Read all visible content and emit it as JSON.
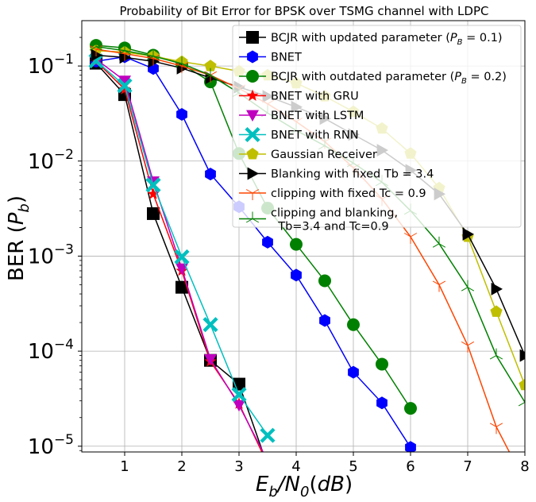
{
  "chart_data": {
    "type": "line",
    "title": "Probability of Bit Error for BPSK over TSMG channel with LDPC",
    "xlabel": "Eb/N0(dB)",
    "ylabel": "BER (Pb)",
    "xlim": [
      0.25,
      8.0
    ],
    "ylim": [
      8.7e-06,
      0.3
    ],
    "yscale": "log",
    "grid": true,
    "legend_position": "top-right",
    "x_ticks": [
      1,
      2,
      3,
      4,
      5,
      6,
      7,
      8
    ],
    "x_tick_labels": [
      "1",
      "2",
      "3",
      "4",
      "5",
      "6",
      "7",
      "8"
    ],
    "y_ticks": [
      1e-05,
      0.0001,
      0.001,
      0.01,
      0.1
    ],
    "y_tick_labels": [
      {
        "base": "10",
        "exp": "−5"
      },
      {
        "base": "10",
        "exp": "−4"
      },
      {
        "base": "10",
        "exp": "−3"
      },
      {
        "base": "10",
        "exp": "−2"
      },
      {
        "base": "10",
        "exp": "−1"
      }
    ],
    "series": [
      {
        "name": "BCJR with updated parameter (P_B = 0.1)",
        "legend_pre": "BCJR with updated parameter (",
        "legend_sub_var": "P",
        "legend_sub": "B",
        "legend_post": " = 0.1)",
        "color": "#000000",
        "marker": "square",
        "x": [
          0.5,
          1,
          1.5,
          2,
          2.5,
          3,
          3.5
        ],
        "y": [
          0.107,
          0.05,
          0.0028,
          0.00047,
          8e-05,
          4.5e-05,
          6.2e-06
        ]
      },
      {
        "name": "BNET",
        "color": "#0000ff",
        "marker": "hexagon",
        "x": [
          0.5,
          1,
          1.5,
          2,
          2.5,
          3,
          3.5,
          4,
          4.5,
          5,
          5.5,
          6
        ],
        "y": [
          0.112,
          0.125,
          0.094,
          0.031,
          0.0073,
          0.0033,
          0.0014,
          0.00063,
          0.00021,
          6e-05,
          2.85e-05,
          9.7e-06
        ]
      },
      {
        "name": "BCJR with outdated parameter (P_B = 0.2)",
        "legend_pre": "BCJR with outdated parameter (",
        "legend_sub_var": "P",
        "legend_sub": "B",
        "legend_post": " = 0.2)",
        "color": "#008000",
        "marker": "circle",
        "x": [
          0.5,
          1,
          1.5,
          2,
          2.5,
          3,
          3.5,
          4,
          4.5,
          5,
          5.5,
          6
        ],
        "y": [
          0.165,
          0.155,
          0.13,
          0.105,
          0.068,
          0.012,
          0.0032,
          0.00133,
          0.00055,
          0.00019,
          7.3e-05,
          2.5e-05
        ]
      },
      {
        "name": "BNET with GRU",
        "color": "#ff0000",
        "marker": "star",
        "x": [
          0.5,
          1,
          1.5,
          2,
          2.5,
          3,
          3.5
        ],
        "y": [
          0.112,
          0.057,
          0.0045,
          0.0007,
          7.8e-05,
          2.8e-05,
          6.5e-06
        ]
      },
      {
        "name": "BNET with LSTM",
        "color": "#bf00bf",
        "marker": "triangle-down",
        "x": [
          0.5,
          1,
          1.5,
          2,
          2.5,
          3,
          3.5
        ],
        "y": [
          0.118,
          0.07,
          0.0061,
          0.00074,
          8.2e-05,
          2.7e-05,
          7e-06
        ]
      },
      {
        "name": "BNET with RNN",
        "color": "#00bfbf",
        "marker": "x",
        "x": [
          0.5,
          1,
          1.5,
          2,
          2.5,
          3,
          3.5
        ],
        "y": [
          0.113,
          0.062,
          0.0056,
          0.00098,
          0.00019,
          3.5e-05,
          1.3e-05
        ]
      },
      {
        "name": "Gaussian Receiver",
        "color": "#bfbf00",
        "marker": "pentagon",
        "x": [
          0.5,
          1,
          1.5,
          2,
          2.5,
          3,
          3.5,
          4,
          4.5,
          5,
          5.5,
          6,
          6.5,
          7,
          7.5,
          8
        ],
        "y": [
          0.145,
          0.14,
          0.127,
          0.111,
          0.1,
          0.088,
          0.08,
          0.066,
          0.048,
          0.033,
          0.022,
          0.012,
          0.0052,
          0.0016,
          0.00026,
          4.4e-05
        ]
      },
      {
        "name": "Blanking with fixed Tb = 3.4",
        "color": "#000000",
        "marker": "triangle-right",
        "x": [
          0.5,
          1,
          1.5,
          2,
          2.5,
          3,
          3.5,
          4,
          4.5,
          5,
          5.5,
          6,
          6.5,
          7,
          7.5,
          8
        ],
        "y": [
          0.13,
          0.123,
          0.112,
          0.095,
          0.075,
          0.06,
          0.048,
          0.037,
          0.028,
          0.019,
          0.013,
          0.008,
          0.0045,
          0.0017,
          0.00045,
          9e-05
        ]
      },
      {
        "name": "clipping with fixed Tc = 0.9",
        "color": "#ff4500",
        "marker": "tri-down",
        "x": [
          0.5,
          1,
          1.5,
          2,
          2.5,
          3,
          3.5,
          4,
          4.5,
          5,
          5.5,
          6,
          6.5,
          7,
          7.5,
          8
        ],
        "y": [
          0.15,
          0.135,
          0.12,
          0.1,
          0.08,
          0.058,
          0.04,
          0.026,
          0.016,
          0.0085,
          0.004,
          0.0016,
          0.0005,
          0.000115,
          1.6e-05,
          4.2e-06
        ]
      },
      {
        "name": "clipping and blanking, Tb=3.4 and Tc=0.9",
        "legend_lines": [
          "clipping and blanking,",
          "  Tb=3.4 and Tc=0.9"
        ],
        "color": "#008000",
        "marker": "tri-up",
        "x": [
          0.5,
          1,
          1.5,
          2,
          2.5,
          3,
          3.5,
          4,
          4.5,
          5,
          5.5,
          6,
          6.5,
          7,
          7.5,
          8
        ],
        "y": [
          0.16,
          0.145,
          0.127,
          0.106,
          0.08,
          0.052,
          0.032,
          0.021,
          0.0145,
          0.0095,
          0.006,
          0.003,
          0.00135,
          0.00047,
          9e-05,
          2.9e-05
        ]
      }
    ]
  }
}
